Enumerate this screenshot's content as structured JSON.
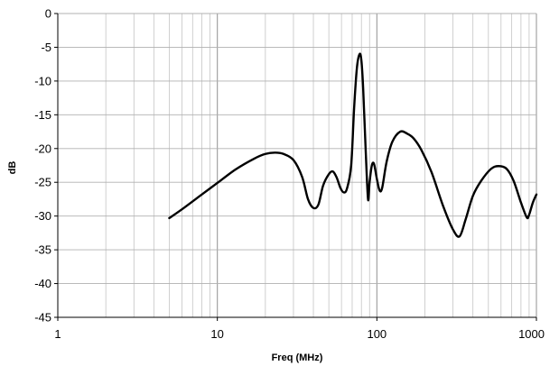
{
  "chart_data": {
    "type": "line",
    "title": "",
    "xlabel": "Freq (MHz)",
    "ylabel": "dB",
    "xscale": "log",
    "xlim": [
      1,
      1000
    ],
    "ylim": [
      -45,
      0
    ],
    "x_ticks": [
      1,
      10,
      100,
      1000
    ],
    "x_tick_labels": [
      "1",
      "10",
      "100",
      "1000"
    ],
    "y_ticks": [
      0,
      -5,
      -10,
      -15,
      -20,
      -25,
      -30,
      -35,
      -40,
      -45
    ],
    "y_tick_labels": [
      "0",
      "-5",
      "-10",
      "-15",
      "-20",
      "-25",
      "-30",
      "-35",
      "-40",
      "-45"
    ],
    "grid": true,
    "legend": "none",
    "series": [
      {
        "color": "#000000",
        "x": [
          5,
          6,
          8,
          10,
          13,
          17,
          20,
          23,
          26,
          30,
          34,
          37,
          40,
          43,
          46,
          50,
          53,
          56,
          59,
          62,
          65,
          69,
          72,
          75,
          78,
          80,
          82,
          85,
          88,
          90,
          93,
          96,
          100,
          104,
          108,
          115,
          125,
          140,
          155,
          170,
          190,
          220,
          260,
          300,
          330,
          360,
          400,
          450,
          520,
          580,
          650,
          720,
          800,
          870,
          900,
          950,
          1000
        ],
        "y": [
          -30.3,
          -29,
          -26.8,
          -25.1,
          -23.1,
          -21.5,
          -20.8,
          -20.6,
          -20.8,
          -21.7,
          -24.2,
          -27.5,
          -28.8,
          -28.3,
          -25.5,
          -23.8,
          -23.4,
          -24.3,
          -25.8,
          -26.5,
          -25.9,
          -22.5,
          -14,
          -8,
          -6,
          -7,
          -11,
          -20,
          -27.5,
          -25,
          -22.5,
          -22.3,
          -24.5,
          -26.2,
          -25.8,
          -22,
          -19,
          -17.5,
          -17.8,
          -18.5,
          -20.2,
          -23.5,
          -28.5,
          -32,
          -33,
          -30.5,
          -27,
          -24.8,
          -23,
          -22.6,
          -23,
          -24.8,
          -28,
          -30.2,
          -29.8,
          -28,
          -26.8
        ]
      }
    ]
  }
}
